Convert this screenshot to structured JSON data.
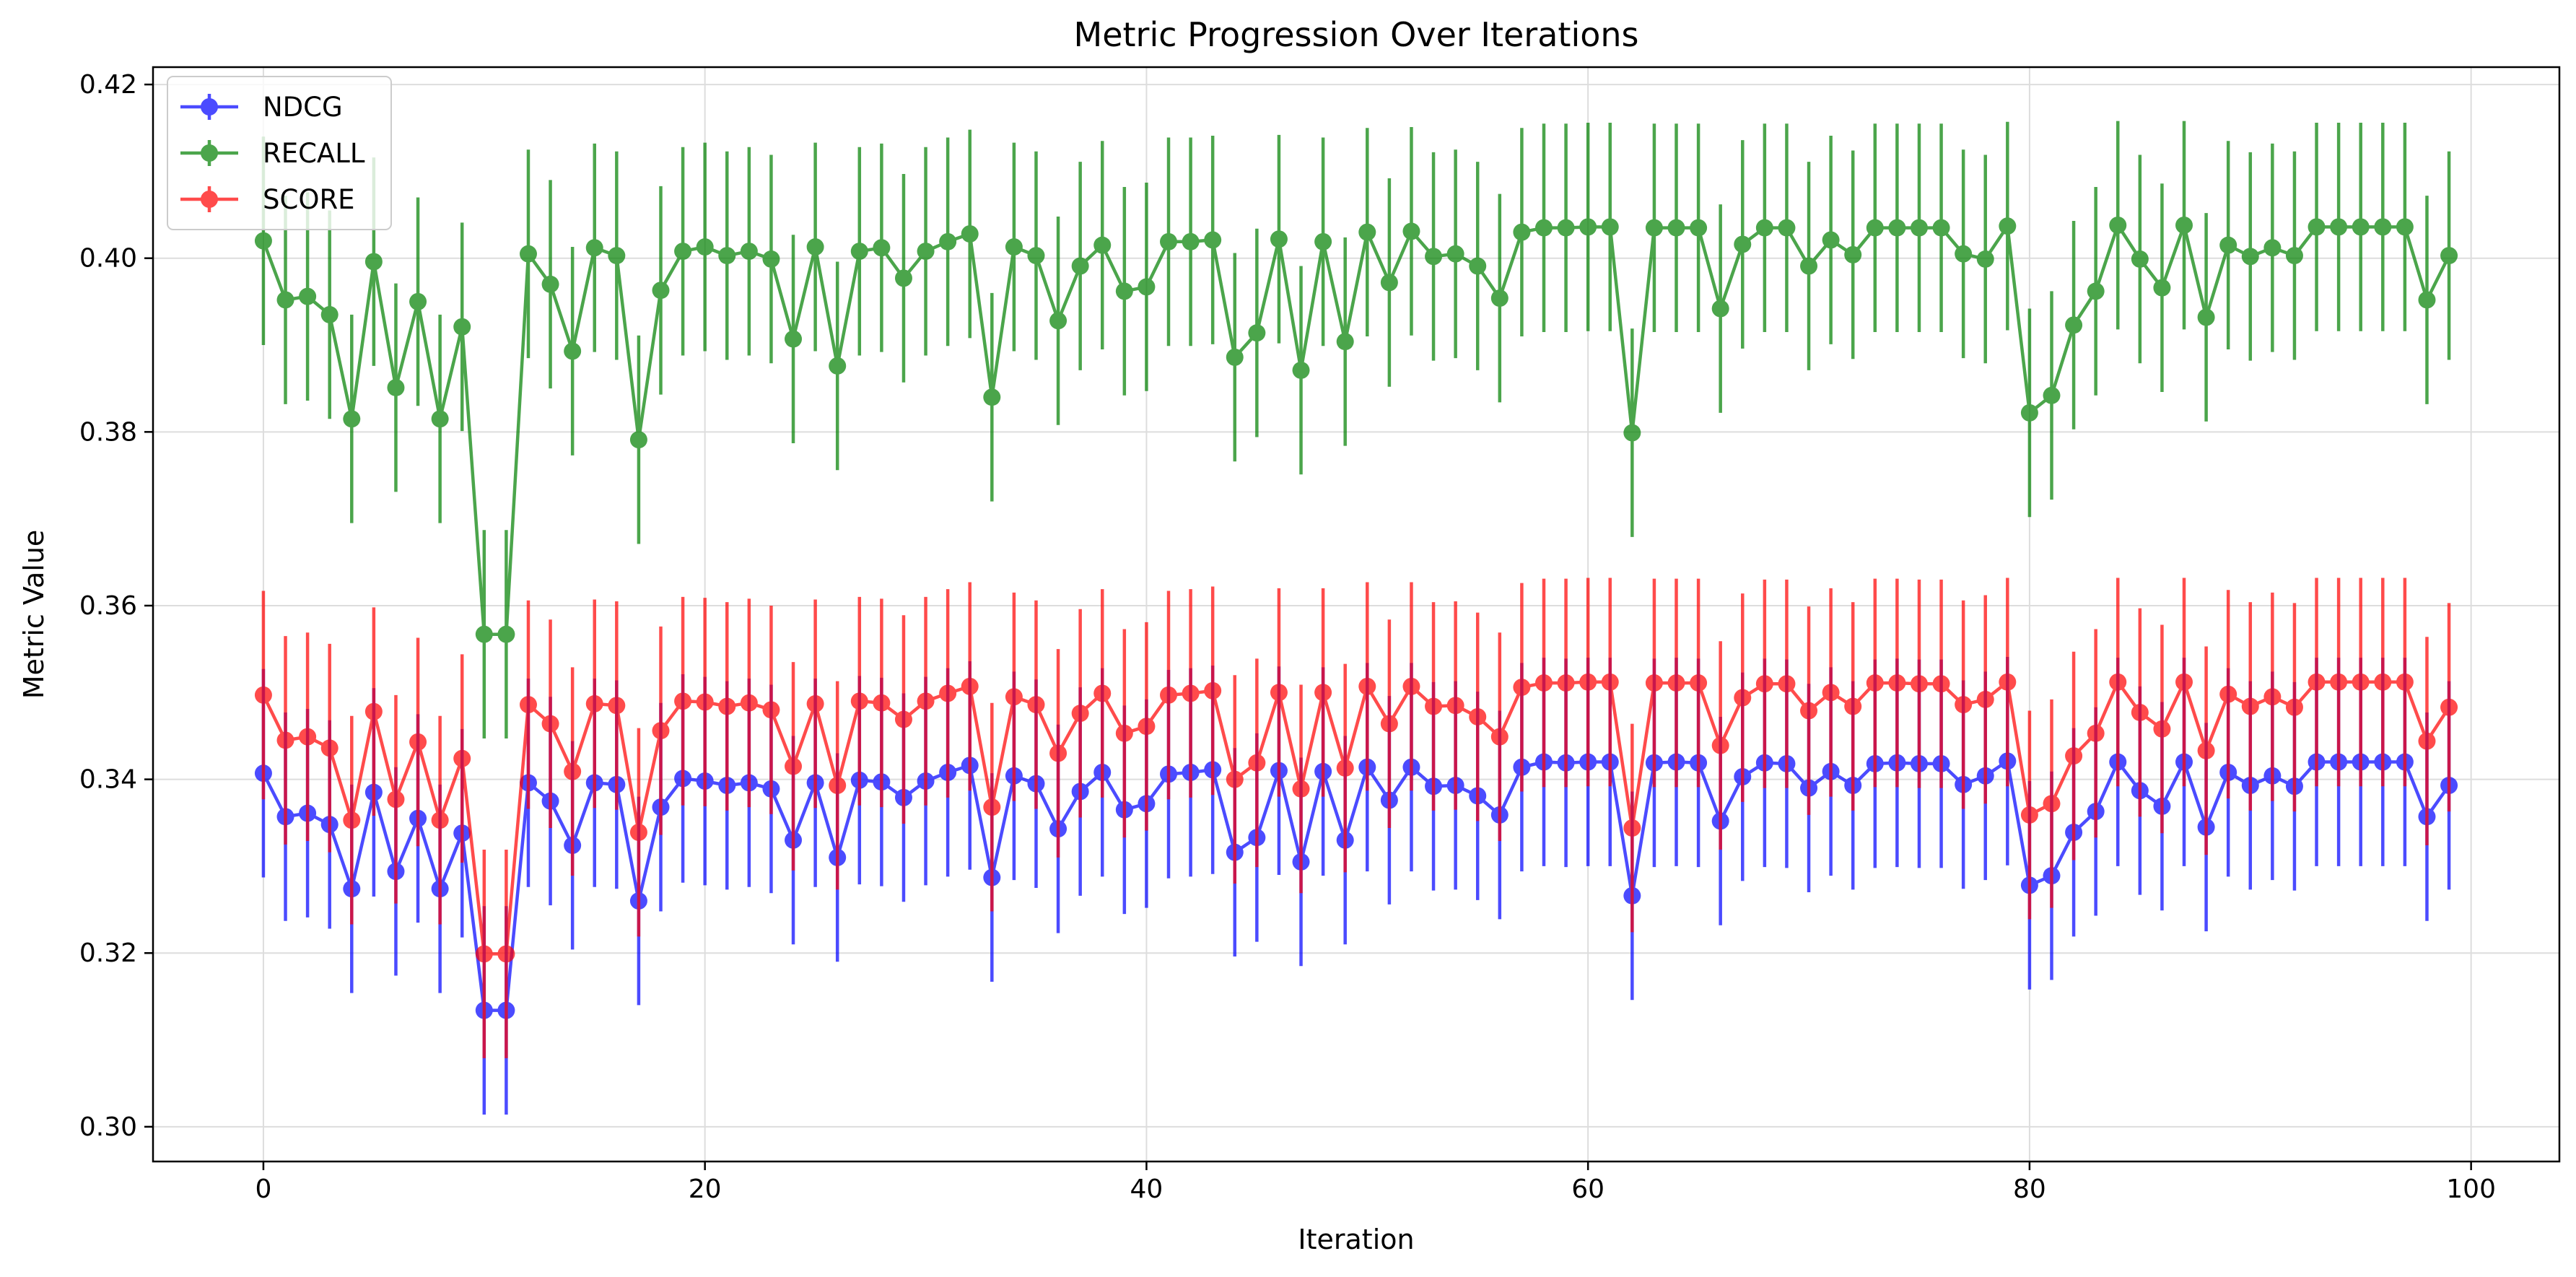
{
  "chart_data": {
    "type": "line",
    "title": "Metric Progression Over Iterations",
    "xlabel": "Iteration",
    "ylabel": "Metric Value",
    "xlim": [
      -5,
      104
    ],
    "ylim": [
      0.296,
      0.422
    ],
    "xticks": [
      0,
      20,
      40,
      60,
      80,
      100
    ],
    "yticks": [
      0.3,
      0.32,
      0.34,
      0.36,
      0.38,
      0.4,
      0.42
    ],
    "ytick_labels": [
      "0.30",
      "0.32",
      "0.34",
      "0.36",
      "0.38",
      "0.40",
      "0.42"
    ],
    "grid": true,
    "legend_position": "top-left",
    "x": [
      0,
      1,
      2,
      3,
      4,
      5,
      6,
      7,
      8,
      9,
      10,
      11,
      12,
      13,
      14,
      15,
      16,
      17,
      18,
      19,
      20,
      21,
      22,
      23,
      24,
      25,
      26,
      27,
      28,
      29,
      30,
      31,
      32,
      33,
      34,
      35,
      36,
      37,
      38,
      39,
      40,
      41,
      42,
      43,
      44,
      45,
      46,
      47,
      48,
      49,
      50,
      51,
      52,
      53,
      54,
      55,
      56,
      57,
      58,
      59,
      60,
      61,
      62,
      63,
      64,
      65,
      66,
      67,
      68,
      69,
      70,
      71,
      72,
      73,
      74,
      75,
      76,
      77,
      78,
      79,
      80,
      81,
      82,
      83,
      84,
      85,
      86,
      87,
      88,
      89,
      90,
      91,
      92,
      93,
      94,
      95,
      96,
      97,
      98,
      99
    ],
    "series": [
      {
        "name": "NDCG",
        "color": "#0000ff",
        "error": 0.012,
        "values": [
          0.3407,
          0.3357,
          0.3361,
          0.3348,
          0.3274,
          0.3385,
          0.3294,
          0.3355,
          0.3274,
          0.3338,
          0.3134,
          0.3134,
          0.3396,
          0.3375,
          0.3324,
          0.3396,
          0.3394,
          0.326,
          0.3368,
          0.3401,
          0.3398,
          0.3393,
          0.3396,
          0.3389,
          0.333,
          0.3396,
          0.331,
          0.3399,
          0.3397,
          0.3379,
          0.3398,
          0.3408,
          0.3416,
          0.3287,
          0.3404,
          0.3395,
          0.3343,
          0.3386,
          0.3408,
          0.3365,
          0.3372,
          0.3406,
          0.3408,
          0.3411,
          0.3316,
          0.3333,
          0.341,
          0.3305,
          0.3409,
          0.333,
          0.3414,
          0.3376,
          0.3414,
          0.3392,
          0.3393,
          0.3381,
          0.3359,
          0.3414,
          0.342,
          0.3419,
          0.342,
          0.342,
          0.3266,
          0.3419,
          0.342,
          0.3419,
          0.3352,
          0.3403,
          0.3419,
          0.3418,
          0.339,
          0.3409,
          0.3393,
          0.3418,
          0.3419,
          0.3418,
          0.3418,
          0.3394,
          0.3404,
          0.3421,
          0.3278,
          0.3289,
          0.3339,
          0.3363,
          0.342,
          0.3387,
          0.3369,
          0.342,
          0.3345,
          0.3408,
          0.3393,
          0.3404,
          0.3392,
          0.342,
          0.342,
          0.342,
          0.342,
          0.342,
          0.3357,
          0.3393
        ]
      },
      {
        "name": "RECALL",
        "color": "#008000",
        "error": 0.012,
        "values": [
          0.402,
          0.3952,
          0.3956,
          0.3935,
          0.3815,
          0.3996,
          0.3851,
          0.395,
          0.3815,
          0.3921,
          0.3567,
          0.3567,
          0.4005,
          0.397,
          0.3893,
          0.4012,
          0.4003,
          0.3791,
          0.3963,
          0.4008,
          0.4013,
          0.4003,
          0.4008,
          0.3999,
          0.3907,
          0.4013,
          0.3876,
          0.4008,
          0.4012,
          0.3977,
          0.4008,
          0.4019,
          0.4028,
          0.384,
          0.4013,
          0.4003,
          0.3928,
          0.3991,
          0.4015,
          0.3962,
          0.3967,
          0.4019,
          0.4019,
          0.4021,
          0.3886,
          0.3914,
          0.4022,
          0.3871,
          0.4019,
          0.3904,
          0.403,
          0.3972,
          0.4031,
          0.4002,
          0.4005,
          0.3991,
          0.3954,
          0.403,
          0.4035,
          0.4035,
          0.4036,
          0.4036,
          0.3799,
          0.4035,
          0.4035,
          0.4035,
          0.3942,
          0.4016,
          0.4035,
          0.4035,
          0.3991,
          0.4021,
          0.4004,
          0.4035,
          0.4035,
          0.4035,
          0.4035,
          0.4005,
          0.3999,
          0.4037,
          0.3822,
          0.3842,
          0.3923,
          0.3962,
          0.4038,
          0.3999,
          0.3966,
          0.4038,
          0.3932,
          0.4015,
          0.4002,
          0.4012,
          0.4003,
          0.4036,
          0.4036,
          0.4036,
          0.4036,
          0.4036,
          0.3952,
          0.4003
        ]
      },
      {
        "name": "SCORE",
        "color": "#ff0000",
        "error": 0.012,
        "values": [
          0.3497,
          0.3445,
          0.3449,
          0.3436,
          0.3353,
          0.3478,
          0.3377,
          0.3443,
          0.3353,
          0.3424,
          0.3199,
          0.3199,
          0.3486,
          0.3464,
          0.3409,
          0.3487,
          0.3485,
          0.3339,
          0.3456,
          0.349,
          0.3489,
          0.3484,
          0.3488,
          0.348,
          0.3415,
          0.3487,
          0.3393,
          0.349,
          0.3488,
          0.3469,
          0.349,
          0.3499,
          0.3507,
          0.3368,
          0.3495,
          0.3486,
          0.343,
          0.3476,
          0.3499,
          0.3453,
          0.3461,
          0.3497,
          0.3499,
          0.3502,
          0.34,
          0.3419,
          0.35,
          0.3389,
          0.35,
          0.3413,
          0.3507,
          0.3464,
          0.3507,
          0.3484,
          0.3485,
          0.3472,
          0.3449,
          0.3506,
          0.3511,
          0.3511,
          0.3512,
          0.3512,
          0.3344,
          0.3511,
          0.3511,
          0.3511,
          0.3439,
          0.3494,
          0.351,
          0.351,
          0.3479,
          0.35,
          0.3484,
          0.3511,
          0.3511,
          0.351,
          0.351,
          0.3486,
          0.3492,
          0.3512,
          0.3359,
          0.3372,
          0.3427,
          0.3453,
          0.3512,
          0.3477,
          0.3458,
          0.3512,
          0.3433,
          0.3498,
          0.3484,
          0.3495,
          0.3483,
          0.3512,
          0.3512,
          0.3512,
          0.3512,
          0.3512,
          0.3444,
          0.3483
        ]
      }
    ]
  }
}
